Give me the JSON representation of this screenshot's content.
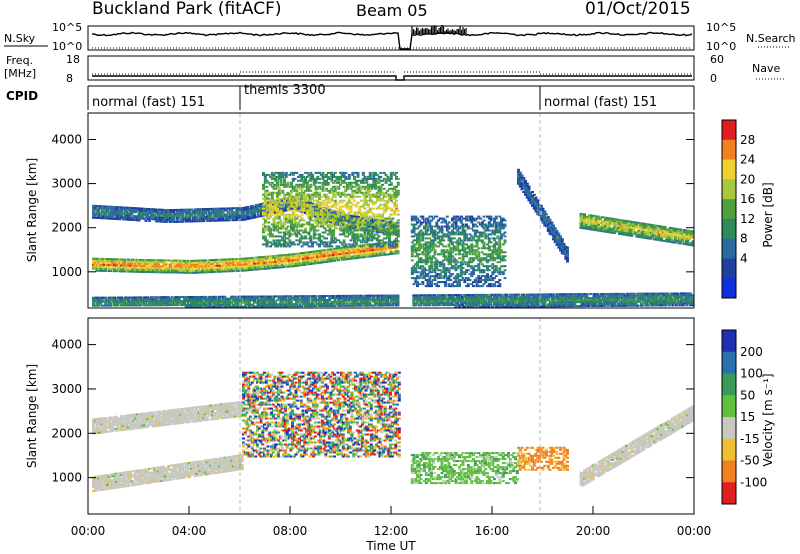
{
  "header": {
    "station": "Buckland Park (fitACF)",
    "beam": "Beam 05",
    "date": "01/Oct/2015"
  },
  "panels": {
    "nsky": {
      "label": "N.Sky",
      "ticks": [
        "10^5",
        "10^0"
      ],
      "right_label": "N.Search",
      "right_ticks": [
        "10^5",
        "10^0"
      ]
    },
    "freq": {
      "label_line1": "Freq.",
      "label_line2": "[MHz]",
      "ticks": [
        "18",
        "8"
      ],
      "right_label": "Nave",
      "right_ticks": [
        "60",
        "0"
      ]
    },
    "cpid": {
      "label": "CPID",
      "segments": [
        "normal (fast) 151",
        "themis 3300",
        "normal (fast) 151"
      ]
    },
    "power": {
      "ylabel": "Slant Range [km]",
      "colorbar_label": "Power [dB]",
      "colorbar_ticks": [
        "28",
        "24",
        "20",
        "16",
        "12",
        "8",
        "4"
      ]
    },
    "velocity": {
      "ylabel": "Slant Range [km]",
      "colorbar_label": "Velocity [m s⁻¹]",
      "colorbar_ticks": [
        "200",
        "100",
        "50",
        "15",
        "-15",
        "-50",
        "-100",
        "-200"
      ]
    }
  },
  "xaxis": {
    "label": "Time UT",
    "ticks": [
      "00:00",
      "04:00",
      "08:00",
      "12:00",
      "16:00",
      "20:00",
      "00:00"
    ]
  },
  "yaxis": {
    "ticks": [
      "1000",
      "2000",
      "3000",
      "4000"
    ]
  },
  "chart_data": [
    {
      "type": "heatmap",
      "title": "Power [dB]",
      "ylabel": "Slant Range [km]",
      "xlabel": "Time UT",
      "x_range_hours": [
        0,
        24
      ],
      "ylim": [
        180,
        4600
      ],
      "color_scale": {
        "range": [
          0,
          30
        ],
        "colors": [
          "#1030e0",
          "#2040a0",
          "#2a6aa0",
          "#2f8a5a",
          "#50a040",
          "#a8c840",
          "#f0d030",
          "#f08020",
          "#e02020"
        ]
      },
      "features": [
        {
          "name": "band",
          "t": [
            0,
            2,
            4,
            6,
            8,
            10,
            12.25
          ],
          "range_km": [
            1200,
            1170,
            1150,
            1200,
            1300,
            1450,
            1600
          ],
          "power_db": 28
        },
        {
          "name": "band",
          "t": [
            0,
            3,
            6,
            8,
            10,
            12.25
          ],
          "range_km": [
            2400,
            2300,
            2350,
            2600,
            2200,
            2000
          ],
          "power_db": 10
        },
        {
          "name": "patch",
          "t": [
            6.8,
            12.25
          ],
          "range_km": [
            1600,
            3300
          ],
          "power_db": 22
        },
        {
          "name": "patch",
          "t": [
            12.75,
            16.5
          ],
          "range_km": [
            700,
            2300
          ],
          "power_db": 14
        },
        {
          "name": "band",
          "t": [
            17,
            19
          ],
          "range_km": [
            3200,
            1400
          ],
          "power_db": 8
        },
        {
          "name": "band",
          "t": [
            19.5,
            24
          ],
          "range_km": [
            2200,
            1800
          ],
          "power_db": 22
        },
        {
          "name": "band",
          "t": [
            0,
            24
          ],
          "range_km": [
            300,
            400
          ],
          "power_db": 12
        }
      ]
    },
    {
      "type": "heatmap",
      "title": "Velocity [m s⁻¹]",
      "ylabel": "Slant Range [km]",
      "xlabel": "Time UT",
      "x_range_hours": [
        0,
        24
      ],
      "ylim": [
        180,
        4600
      ],
      "color_levels": [
        "200",
        "100",
        "50",
        "15",
        "-15",
        "-50",
        "-100",
        "-200"
      ],
      "colors": [
        "#2030b0",
        "#2a70b0",
        "#3a9a5a",
        "#60c040",
        "#c8c8c0",
        "#f0c030",
        "#f08020",
        "#e02020"
      ],
      "features": [
        {
          "name": "ground scatter",
          "t": [
            0,
            6
          ],
          "range_km": [
            900,
            1400
          ],
          "velocity": "-15..15"
        },
        {
          "name": "ground scatter",
          "t": [
            0,
            6
          ],
          "range_km": [
            2200,
            2600
          ],
          "velocity": "-15..15"
        },
        {
          "name": "mixed",
          "t": [
            6,
            12.25
          ],
          "range_km": [
            1500,
            3400
          ],
          "velocity": "mixed"
        },
        {
          "name": "negative",
          "t": [
            12.75,
            17
          ],
          "range_km": [
            900,
            1600
          ],
          "velocity": "50"
        },
        {
          "name": "negative",
          "t": [
            17,
            19
          ],
          "range_km": [
            1200,
            1700
          ],
          "velocity": "-50..-100"
        },
        {
          "name": "ground scatter",
          "t": [
            19.5,
            24
          ],
          "range_km": [
            1000,
            2500
          ],
          "velocity": "-15..15"
        }
      ]
    }
  ]
}
